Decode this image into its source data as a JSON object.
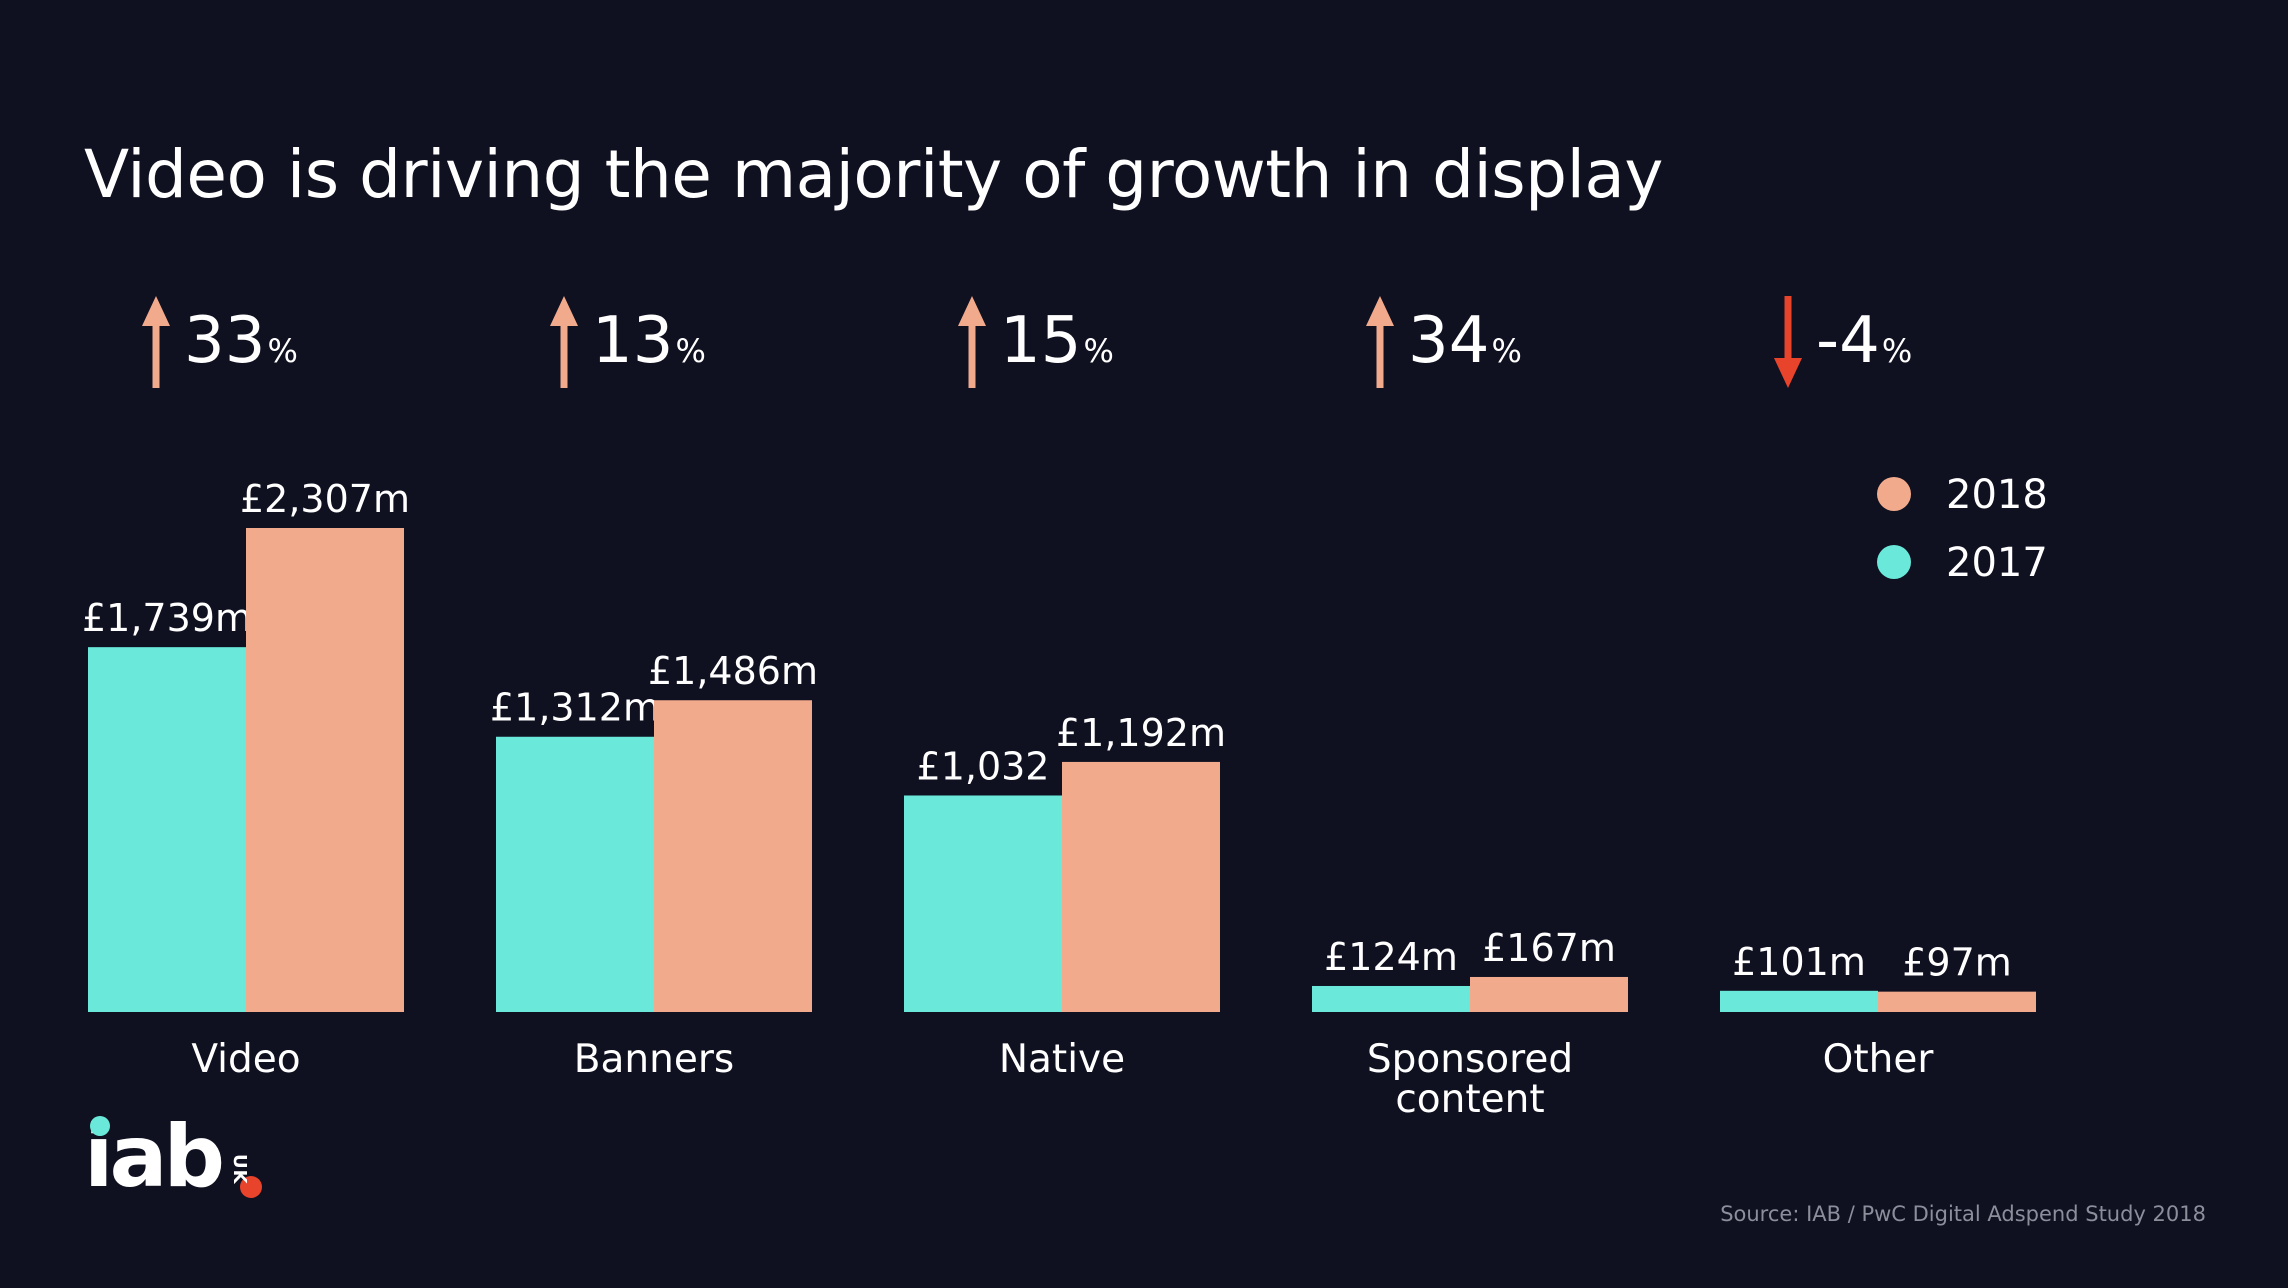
{
  "title": "Video is driving the majority of growth in display",
  "source": "Source: IAB / PwC Digital Adspend Study 2018",
  "logo": {
    "text": "iab",
    "suffix": "UK"
  },
  "colors": {
    "background": "#0f1020",
    "series_2017": "#6ae9da",
    "series_2018": "#f2aa8c",
    "arrow_up": "#f2aa8c",
    "arrow_down": "#e8432b",
    "text": "#ffffff",
    "source_text": "#8c8e9c"
  },
  "chart_data": {
    "type": "bar",
    "title": "Video is driving the majority of growth in display",
    "categories": [
      "Video",
      "Banners",
      "Native",
      "Sponsored content",
      "Other"
    ],
    "category_lines": [
      [
        "Video"
      ],
      [
        "Banners"
      ],
      [
        "Native"
      ],
      [
        "Sponsored",
        "content"
      ],
      [
        "Other"
      ]
    ],
    "series": [
      {
        "name": "2017",
        "values": [
          1739,
          1312,
          1032,
          124,
          101
        ],
        "labels": [
          "£1,739m",
          "£1,312m",
          "£1,032",
          "£124m",
          "£101m"
        ]
      },
      {
        "name": "2018",
        "values": [
          2307,
          1486,
          1192,
          167,
          97
        ],
        "labels": [
          "£2,307m",
          "£1,486m",
          "£1,192m",
          "£167m",
          "£97m"
        ]
      }
    ],
    "growth": [
      {
        "value": "33",
        "unit": "%",
        "direction": "up"
      },
      {
        "value": "13",
        "unit": "%",
        "direction": "up"
      },
      {
        "value": "15",
        "unit": "%",
        "direction": "up"
      },
      {
        "value": "34",
        "unit": "%",
        "direction": "up"
      },
      {
        "value": "-4",
        "unit": "%",
        "direction": "down"
      }
    ],
    "legend": {
      "placement": "top-right",
      "items": [
        {
          "label": "2018",
          "series": "2018"
        },
        {
          "label": "2017",
          "series": "2017"
        }
      ]
    },
    "ylim": [
      0,
      2307
    ],
    "grid": false,
    "xlabel": "",
    "ylabel": ""
  }
}
